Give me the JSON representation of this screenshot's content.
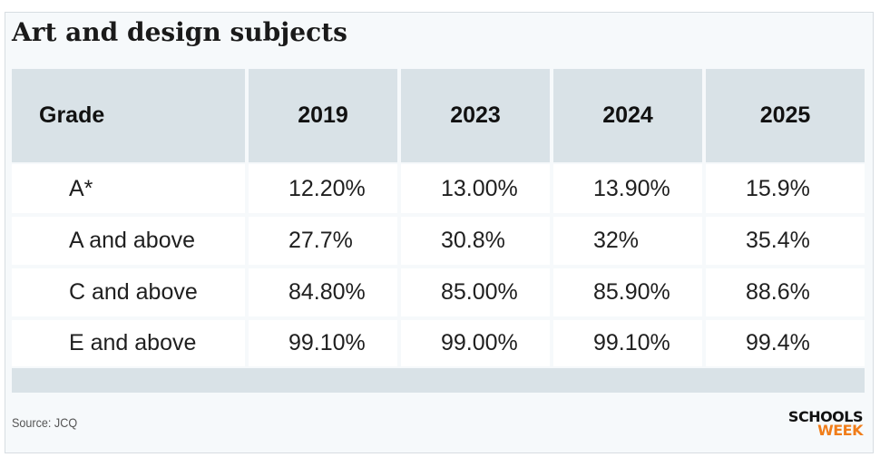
{
  "title": "Art and design subjects",
  "chart_data": {
    "type": "table",
    "title": "Art and design subjects",
    "columns": [
      "Grade",
      "2019",
      "2023",
      "2024",
      "2025"
    ],
    "rows": [
      {
        "grade": "A*",
        "values": [
          "12.20%",
          "13.00%",
          "13.90%",
          "15.9%"
        ]
      },
      {
        "grade": "A and above",
        "values": [
          "27.7%",
          "30.8%",
          "32%",
          "35.4%"
        ]
      },
      {
        "grade": "C and above",
        "values": [
          "84.80%",
          "85.00%",
          "85.90%",
          "88.6%"
        ]
      },
      {
        "grade": "E and above",
        "values": [
          "99.10%",
          "99.00%",
          "99.10%",
          "99.4%"
        ]
      }
    ]
  },
  "footer": {
    "source": "Source: JCQ",
    "logo_line1": "SCHOOLS",
    "logo_line2": "WEEK"
  },
  "colors": {
    "header_bg": "#d9e2e7",
    "card_bg": "#f6f9fb",
    "logo_accent": "#f07d1a"
  }
}
